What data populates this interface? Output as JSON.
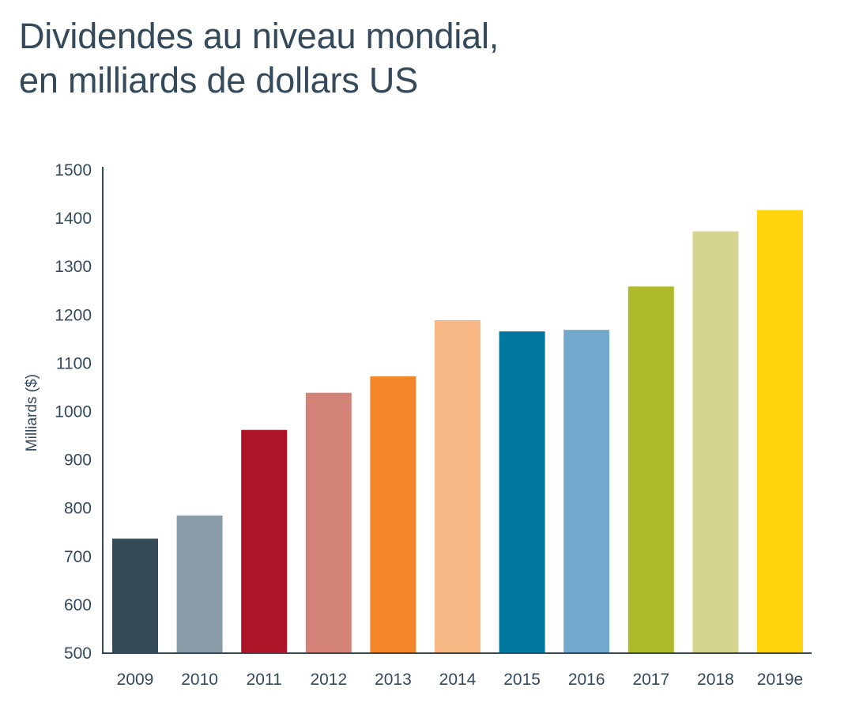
{
  "chart_data": {
    "type": "bar",
    "title_lines": [
      "Dividendes au niveau mondial,",
      "en milliards de dollars US"
    ],
    "ylabel": "Milliards ($)",
    "xlabel": "",
    "categories": [
      "2009",
      "2010",
      "2011",
      "2012",
      "2013",
      "2014",
      "2015",
      "2016",
      "2017",
      "2018",
      "2019e"
    ],
    "values": [
      737,
      785,
      962,
      1039,
      1073,
      1189,
      1166,
      1169,
      1259,
      1373,
      1417
    ],
    "colors": [
      "#344a57",
      "#8a9ca8",
      "#ad1428",
      "#d28276",
      "#f28629",
      "#f7b886",
      "#00779f",
      "#73a9cc",
      "#adbb28",
      "#d6d590",
      "#ffd40d"
    ],
    "ylim": [
      500,
      1500
    ],
    "yticks": [
      500,
      600,
      700,
      800,
      900,
      1000,
      1100,
      1200,
      1300,
      1400,
      1500
    ],
    "grid": false,
    "axis_color": "#34495a"
  }
}
